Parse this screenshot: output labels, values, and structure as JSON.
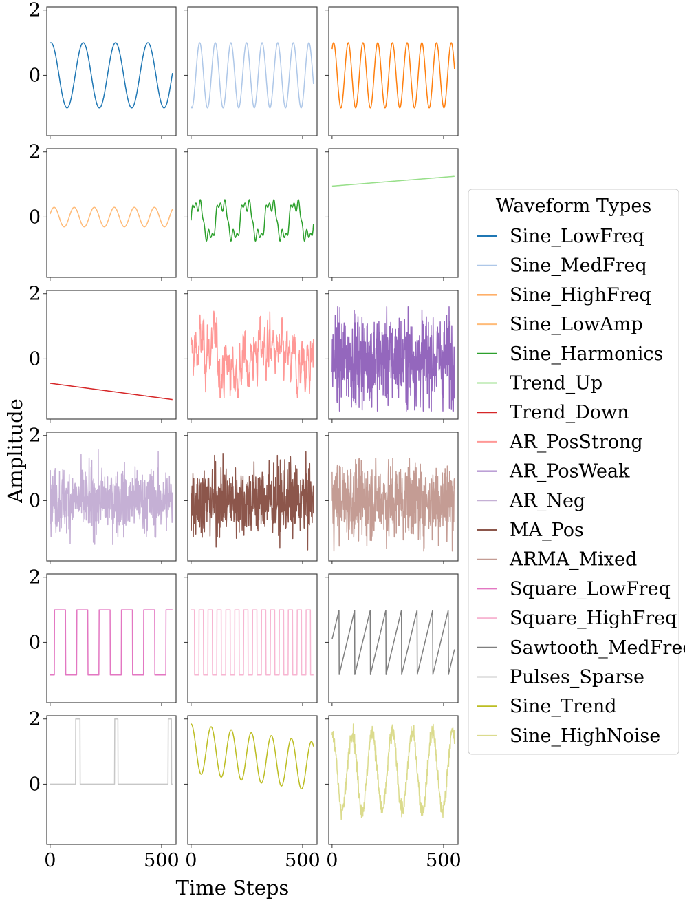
{
  "chart_data": {
    "type": "line",
    "layout": "small-multiples",
    "xlabel": "Time Steps",
    "ylabel": "Amplitude",
    "xlim": [
      -15,
      565
    ],
    "ylim": [
      -1.85,
      2.1
    ],
    "xticks": [
      0,
      500
    ],
    "yticks": [
      0,
      2
    ],
    "n_points": 550,
    "legend": {
      "title": "Waveform Types",
      "placement": "right"
    },
    "series": [
      {
        "name": "Sine_LowFreq",
        "color": "#1f77b4",
        "kind": "sine",
        "amplitude": 1.0,
        "period": 145,
        "phase": 0.45
      },
      {
        "name": "Sine_MedFreq",
        "color": "#aec7e8",
        "kind": "sine",
        "amplitude": 1.0,
        "period": 70,
        "phase": -0.6
      },
      {
        "name": "Sine_HighFreq",
        "color": "#ff7f0e",
        "kind": "sine",
        "amplitude": 1.0,
        "period": 66,
        "phase": 0.3
      },
      {
        "name": "Sine_LowAmp",
        "color": "#ffbb78",
        "kind": "sine",
        "amplitude": 0.3,
        "period": 90,
        "phase": 0.1
      },
      {
        "name": "Sine_Harmonics",
        "color": "#2ca02c",
        "kind": "harmonics",
        "period": 110,
        "offset": -0.1
      },
      {
        "name": "Trend_Up",
        "color": "#98df8a",
        "kind": "linear",
        "start": 0.95,
        "end": 1.25
      },
      {
        "name": "Trend_Down",
        "color": "#d62728",
        "kind": "linear",
        "start": -0.75,
        "end": -1.25
      },
      {
        "name": "AR_PosStrong",
        "color": "#ff9896",
        "kind": "ar_strong",
        "min": -1.2,
        "max": 1.65
      },
      {
        "name": "AR_PosWeak",
        "color": "#9467bd",
        "kind": "noise",
        "scale": 0.7,
        "min": -1.6,
        "max": 1.6
      },
      {
        "name": "AR_Neg",
        "color": "#c5b0d5",
        "kind": "noise",
        "scale": 0.5,
        "min": -1.35,
        "max": 1.6
      },
      {
        "name": "MA_Pos",
        "color": "#8c564b",
        "kind": "noise",
        "scale": 0.55,
        "min": -1.65,
        "max": 1.5
      },
      {
        "name": "ARMA_Mixed",
        "color": "#c49c94",
        "kind": "noise",
        "scale": 0.6,
        "min": -1.55,
        "max": 1.3
      },
      {
        "name": "Square_LowFreq",
        "color": "#e377c2",
        "kind": "square",
        "period": 100,
        "phase": 0.8,
        "low": -1,
        "high": 1
      },
      {
        "name": "Square_HighFreq",
        "color": "#f7b6d2",
        "kind": "square",
        "period": 40,
        "phase": 0.1,
        "low": -1,
        "high": 1
      },
      {
        "name": "Sawtooth_MedFreq",
        "color": "#7f7f7f",
        "kind": "sawtooth",
        "period": 70,
        "phase": 0.55
      },
      {
        "name": "Pulses_Sparse",
        "color": "#c7c7c7",
        "kind": "pulses",
        "base": 0,
        "peak": 2,
        "pulses": [
          [
            115,
            135
          ],
          [
            290,
            305
          ],
          [
            530,
            545
          ]
        ]
      },
      {
        "name": "Sine_Trend",
        "color": "#bcbd22",
        "kind": "sine_trend",
        "amplitude": 0.75,
        "period": 90,
        "offset_start": 1.1,
        "offset_end": 0.55
      },
      {
        "name": "Sine_HighNoise",
        "color": "#dbdb8d",
        "kind": "sine_noise",
        "amplitude": 1.2,
        "period": 90,
        "offset": 0.4,
        "noise": 0.18
      }
    ]
  }
}
